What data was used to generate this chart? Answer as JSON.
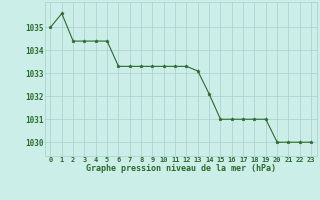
{
  "x": [
    0,
    1,
    2,
    3,
    4,
    5,
    6,
    7,
    8,
    9,
    10,
    11,
    12,
    13,
    14,
    15,
    16,
    17,
    18,
    19,
    20,
    21,
    22,
    23
  ],
  "y": [
    1035.0,
    1035.6,
    1034.4,
    1034.4,
    1034.4,
    1034.4,
    1033.3,
    1033.3,
    1033.3,
    1033.3,
    1033.3,
    1033.3,
    1033.3,
    1033.1,
    1032.1,
    1031.0,
    1031.0,
    1031.0,
    1031.0,
    1031.0,
    1030.0,
    1030.0,
    1030.0,
    1030.0
  ],
  "line_color": "#2d6a2d",
  "marker": "*",
  "marker_size": 2.5,
  "bg_color": "#cceee8",
  "grid_color": "#aacccc",
  "xlabel": "Graphe pression niveau de la mer (hPa)",
  "xlabel_color": "#2d6a2d",
  "tick_color": "#2d6a2d",
  "yticks": [
    1030,
    1031,
    1032,
    1033,
    1034,
    1035
  ],
  "ylim": [
    1029.4,
    1036.1
  ],
  "xlim": [
    -0.5,
    23.5
  ],
  "xtick_labels": [
    "0",
    "1",
    "2",
    "3",
    "4",
    "5",
    "6",
    "7",
    "8",
    "9",
    "10",
    "11",
    "12",
    "13",
    "14",
    "15",
    "16",
    "17",
    "18",
    "19",
    "20",
    "21",
    "22",
    "23"
  ]
}
